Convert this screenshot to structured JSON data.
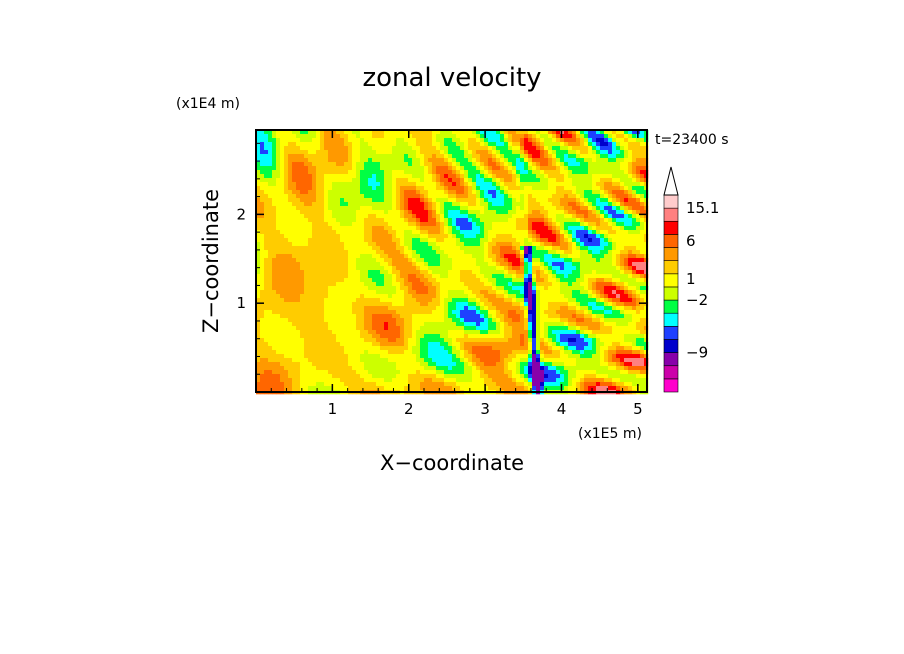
{
  "chart_data": {
    "type": "heatmap",
    "title": "zonal velocity",
    "xlabel": "X−coordinate",
    "ylabel": "Z−coordinate",
    "x_unit": "(x1E5 m)",
    "y_unit": "(x1E4 m)",
    "time_label": "t=23400 s",
    "xlim": [
      0,
      5.12
    ],
    "ylim": [
      0,
      2.95
    ],
    "x_ticks": [
      1,
      2,
      3,
      4,
      5
    ],
    "x_tick_labels": [
      "1",
      "2",
      "3",
      "4",
      "5"
    ],
    "y_ticks": [
      1,
      2
    ],
    "y_tick_labels": [
      "1",
      "2"
    ],
    "colorbar": {
      "labels": [
        {
          "value": 15.1,
          "text": "15.1"
        },
        {
          "value": 6,
          "text": "6"
        },
        {
          "value": 1,
          "text": "1"
        },
        {
          "value": -2,
          "text": "−2"
        },
        {
          "value": -9,
          "text": "−9"
        }
      ],
      "levels": [
        {
          "color": "#ff00cc"
        },
        {
          "color": "#cc00aa"
        },
        {
          "color": "#8800aa"
        },
        {
          "color": "#0000cc"
        },
        {
          "color": "#1e40ff"
        },
        {
          "color": "#00ffff"
        },
        {
          "color": "#00ff44"
        },
        {
          "color": "#ccff00"
        },
        {
          "color": "#ffff00"
        },
        {
          "color": "#ffcc00"
        },
        {
          "color": "#ff9900"
        },
        {
          "color": "#ff6600"
        },
        {
          "color": "#ff0000"
        },
        {
          "color": "#ff8080"
        },
        {
          "color": "#ffcccc"
        }
      ],
      "extend_max": true
    },
    "field_description": "oscillating zonal velocity field with a wide yellow/green region on the left, tilted blue-orange wave bands in the middle and upper right, and a near-vertical dark band around x = 3.7"
  }
}
